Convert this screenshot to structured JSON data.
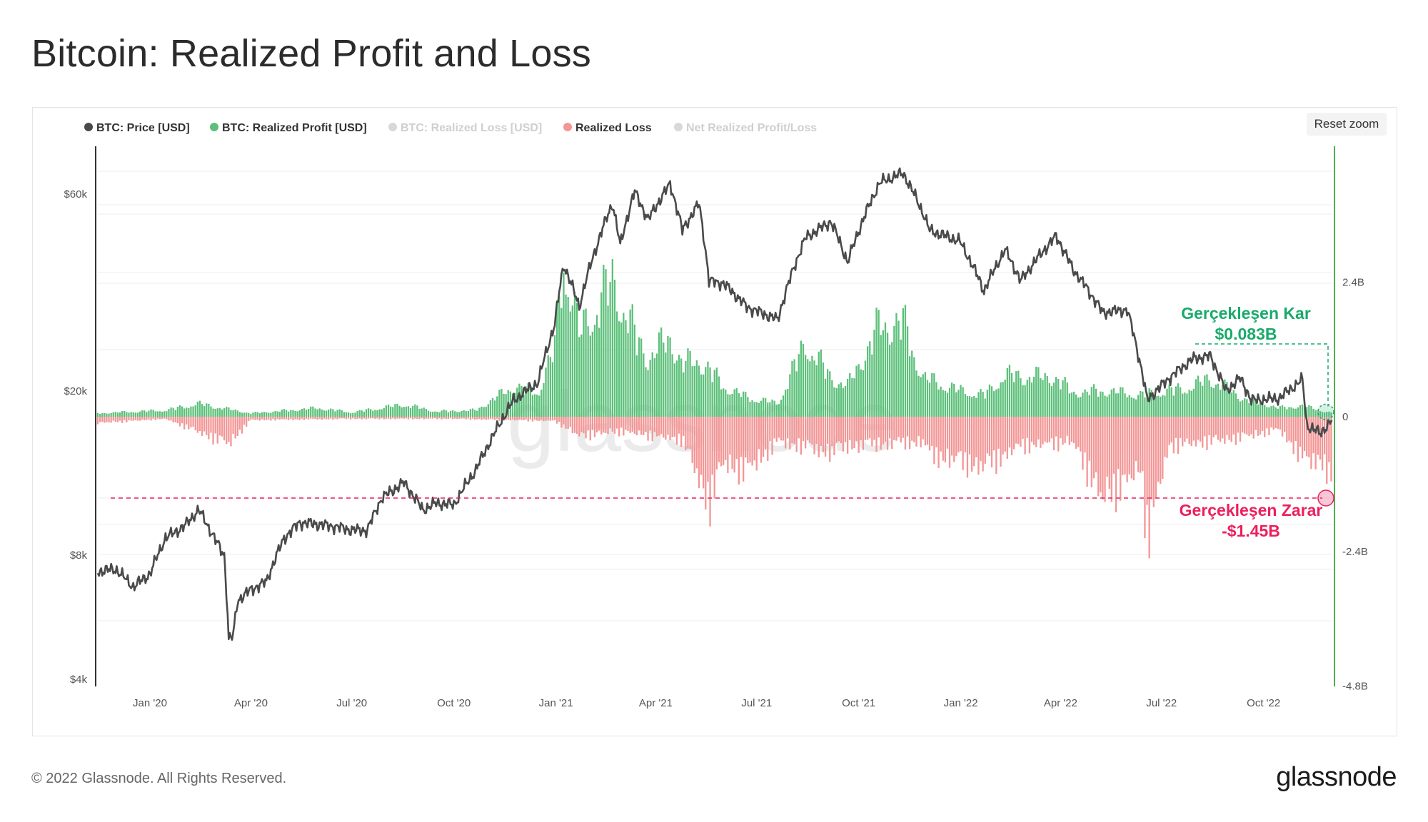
{
  "page": {
    "title": "Bitcoin: Realized Profit and Loss",
    "reset_zoom_label": "Reset zoom",
    "footer_copyright": "© 2022 Glassnode. All Rights Reserved.",
    "footer_logo": "glassnode",
    "watermark": "glassnode"
  },
  "colors": {
    "price": "#4a4a4a",
    "profit": "#5cc07a",
    "loss": "#f39696",
    "loss_legend_hidden": "#f6b5b5",
    "net": "#3f6ee8",
    "annotation_profit": "#1aaa6b",
    "annotation_loss": "#ec1f5d",
    "right_axis": "#4caf50",
    "grid": "#ececec"
  },
  "legend": [
    {
      "label": "BTC: Price [USD]",
      "color": "#4a4a4a",
      "hidden": false
    },
    {
      "label": "BTC: Realized Profit [USD]",
      "color": "#5cc07a",
      "hidden": false
    },
    {
      "label": "BTC: Realized Loss [USD]",
      "color": "#f6b5b5",
      "hidden": true
    },
    {
      "label": "Realized Loss",
      "color": "#f39696",
      "hidden": false
    },
    {
      "label": "Net Realized Profit/Loss",
      "color": "#3f6ee8",
      "hidden": true
    }
  ],
  "annotations": {
    "profit_title": "Gerçekleşen Kar",
    "profit_value": "$0.083B",
    "loss_title": "Gerçekleşen Zarar",
    "loss_value": "-$1.45B"
  },
  "chart_data": {
    "type": "line+bar",
    "title": "Bitcoin: Realized Profit and Loss",
    "left_axis": {
      "scale": "log",
      "ticks": [
        "$4k",
        "$8k",
        "$20k",
        "$60k"
      ],
      "tick_values": [
        4000,
        8000,
        20000,
        60000
      ],
      "range": [
        4000,
        70000
      ]
    },
    "right_axis": {
      "ticks": [
        "2.4B",
        "0",
        "-2.4B",
        "-4.8B"
      ],
      "tick_values": [
        2.4,
        0,
        -2.4,
        -4.8
      ],
      "range": [
        -4.8,
        4.8
      ],
      "unit": "B USD"
    },
    "x_axis": {
      "ticks": [
        "Jan '20",
        "Apr '20",
        "Jul '20",
        "Oct '20",
        "Jan '21",
        "Apr '21",
        "Jul '21",
        "Oct '21",
        "Jan '22",
        "Apr '22",
        "Jul '22",
        "Oct '22"
      ],
      "tick_dates": [
        "2020-01-01",
        "2020-04-01",
        "2020-07-01",
        "2020-10-01",
        "2021-01-01",
        "2021-04-01",
        "2021-07-01",
        "2021-10-01",
        "2022-01-01",
        "2022-04-01",
        "2022-07-01",
        "2022-10-01"
      ],
      "range": [
        "2019-11-15",
        "2022-12-02"
      ]
    },
    "price_series": {
      "name": "BTC: Price [USD]",
      "points": [
        [
          "2019-11-15",
          7300
        ],
        [
          "2019-12-01",
          7400
        ],
        [
          "2019-12-17",
          6700
        ],
        [
          "2020-01-01",
          7200
        ],
        [
          "2020-01-15",
          8800
        ],
        [
          "2020-02-01",
          9400
        ],
        [
          "2020-02-14",
          10300
        ],
        [
          "2020-02-29",
          8700
        ],
        [
          "2020-03-08",
          8000
        ],
        [
          "2020-03-12",
          5000
        ],
        [
          "2020-03-16",
          5100
        ],
        [
          "2020-03-20",
          6200
        ],
        [
          "2020-04-01",
          6600
        ],
        [
          "2020-04-15",
          6900
        ],
        [
          "2020-05-01",
          8800
        ],
        [
          "2020-05-15",
          9600
        ],
        [
          "2020-06-01",
          9500
        ],
        [
          "2020-06-15",
          9400
        ],
        [
          "2020-07-01",
          9200
        ],
        [
          "2020-07-15",
          9200
        ],
        [
          "2020-07-28",
          11000
        ],
        [
          "2020-08-17",
          12000
        ],
        [
          "2020-09-03",
          10300
        ],
        [
          "2020-09-15",
          10700
        ],
        [
          "2020-10-01",
          10600
        ],
        [
          "2020-10-21",
          12900
        ],
        [
          "2020-11-05",
          15500
        ],
        [
          "2020-11-24",
          19000
        ],
        [
          "2020-12-16",
          21000
        ],
        [
          "2020-12-31",
          29000
        ],
        [
          "2021-01-08",
          40500
        ],
        [
          "2021-01-22",
          32000
        ],
        [
          "2021-02-08",
          46000
        ],
        [
          "2021-02-21",
          57000
        ],
        [
          "2021-02-28",
          45000
        ],
        [
          "2021-03-13",
          61000
        ],
        [
          "2021-03-25",
          52000
        ],
        [
          "2021-04-14",
          63500
        ],
        [
          "2021-04-25",
          49000
        ],
        [
          "2021-05-10",
          57000
        ],
        [
          "2021-05-19",
          37000
        ],
        [
          "2021-06-01",
          36500
        ],
        [
          "2021-06-22",
          32000
        ],
        [
          "2021-07-20",
          29800
        ],
        [
          "2021-08-14",
          47000
        ],
        [
          "2021-09-06",
          51500
        ],
        [
          "2021-09-21",
          41000
        ],
        [
          "2021-10-20",
          64000
        ],
        [
          "2021-11-10",
          67500
        ],
        [
          "2021-11-28",
          54000
        ],
        [
          "2021-12-04",
          49000
        ],
        [
          "2021-12-31",
          46200
        ],
        [
          "2022-01-22",
          35000
        ],
        [
          "2022-02-10",
          44000
        ],
        [
          "2022-02-24",
          37000
        ],
        [
          "2022-03-28",
          47500
        ],
        [
          "2022-04-12",
          39500
        ],
        [
          "2022-05-09",
          31000
        ],
        [
          "2022-05-31",
          31500
        ],
        [
          "2022-06-13",
          22500
        ],
        [
          "2022-06-18",
          19000
        ],
        [
          "2022-07-08",
          21500
        ],
        [
          "2022-07-30",
          24000
        ],
        [
          "2022-08-14",
          24300
        ],
        [
          "2022-08-28",
          20000
        ],
        [
          "2022-09-10",
          21500
        ],
        [
          "2022-09-20",
          19000
        ],
        [
          "2022-10-15",
          19200
        ],
        [
          "2022-11-05",
          21300
        ],
        [
          "2022-11-09",
          16500
        ],
        [
          "2022-11-21",
          15800
        ],
        [
          "2022-12-02",
          17000
        ]
      ]
    },
    "profit_series": {
      "name": "BTC: Realized Profit [USD]",
      "points": [
        [
          "2019-11-15",
          0.08
        ],
        [
          "2020-01-15",
          0.15
        ],
        [
          "2020-02-14",
          0.3
        ],
        [
          "2020-04-01",
          0.08
        ],
        [
          "2020-06-01",
          0.2
        ],
        [
          "2020-07-01",
          0.1
        ],
        [
          "2020-08-17",
          0.28
        ],
        [
          "2020-09-15",
          0.12
        ],
        [
          "2020-10-21",
          0.15
        ],
        [
          "2020-11-24",
          0.7
        ],
        [
          "2020-12-16",
          0.55
        ],
        [
          "2020-12-31",
          1.6
        ],
        [
          "2021-01-08",
          3.75
        ],
        [
          "2021-01-22",
          1.9
        ],
        [
          "2021-02-08",
          2.6
        ],
        [
          "2021-02-21",
          3.1
        ],
        [
          "2021-03-13",
          1.9
        ],
        [
          "2021-03-25",
          1.35
        ],
        [
          "2021-04-14",
          1.8
        ],
        [
          "2021-04-25",
          1.2
        ],
        [
          "2021-05-10",
          1.3
        ],
        [
          "2021-05-19",
          1.1
        ],
        [
          "2021-06-01",
          0.7
        ],
        [
          "2021-06-22",
          0.45
        ],
        [
          "2021-07-20",
          0.3
        ],
        [
          "2021-08-14",
          1.7
        ],
        [
          "2021-09-06",
          0.9
        ],
        [
          "2021-09-21",
          0.7
        ],
        [
          "2021-10-20",
          2.1
        ],
        [
          "2021-11-10",
          2.15
        ],
        [
          "2021-11-28",
          0.9
        ],
        [
          "2021-12-31",
          0.6
        ],
        [
          "2022-01-22",
          0.5
        ],
        [
          "2022-02-10",
          0.95
        ],
        [
          "2022-03-28",
          0.9
        ],
        [
          "2022-04-12",
          0.55
        ],
        [
          "2022-05-09",
          0.6
        ],
        [
          "2022-06-13",
          0.5
        ],
        [
          "2022-07-08",
          0.6
        ],
        [
          "2022-07-30",
          0.7
        ],
        [
          "2022-08-14",
          0.9
        ],
        [
          "2022-09-10",
          0.45
        ],
        [
          "2022-10-15",
          0.2
        ],
        [
          "2022-11-05",
          0.25
        ],
        [
          "2022-12-02",
          0.083
        ]
      ]
    },
    "loss_series": {
      "name": "Realized Loss",
      "points": [
        [
          "2019-11-15",
          -0.15
        ],
        [
          "2020-01-15",
          -0.05
        ],
        [
          "2020-03-12",
          -0.65
        ],
        [
          "2020-04-01",
          -0.08
        ],
        [
          "2020-07-01",
          -0.05
        ],
        [
          "2020-10-01",
          -0.05
        ],
        [
          "2020-12-31",
          -0.1
        ],
        [
          "2021-01-22",
          -0.45
        ],
        [
          "2021-02-28",
          -0.35
        ],
        [
          "2021-04-25",
          -0.55
        ],
        [
          "2021-05-19",
          -2.05
        ],
        [
          "2021-06-01",
          -1.1
        ],
        [
          "2021-06-22",
          -1.3
        ],
        [
          "2021-07-20",
          -0.6
        ],
        [
          "2021-09-07",
          -0.85
        ],
        [
          "2021-09-21",
          -0.7
        ],
        [
          "2021-11-28",
          -0.6
        ],
        [
          "2021-12-04",
          -0.9
        ],
        [
          "2022-01-22",
          -1.2
        ],
        [
          "2022-02-24",
          -0.7
        ],
        [
          "2022-04-12",
          -0.6
        ],
        [
          "2022-05-09",
          -1.95
        ],
        [
          "2022-06-13",
          -1.25
        ],
        [
          "2022-06-18",
          -2.85
        ],
        [
          "2022-07-08",
          -0.7
        ],
        [
          "2022-08-28",
          -0.55
        ],
        [
          "2022-09-20",
          -0.45
        ],
        [
          "2022-10-15",
          -0.3
        ],
        [
          "2022-11-09",
          -1.1
        ],
        [
          "2022-11-21",
          -1.0
        ],
        [
          "2022-12-02",
          -1.45
        ]
      ]
    },
    "reference_lines": {
      "profit_level": 0.083,
      "loss_level": -1.45
    },
    "grid": true,
    "legend_position": "top-left"
  }
}
